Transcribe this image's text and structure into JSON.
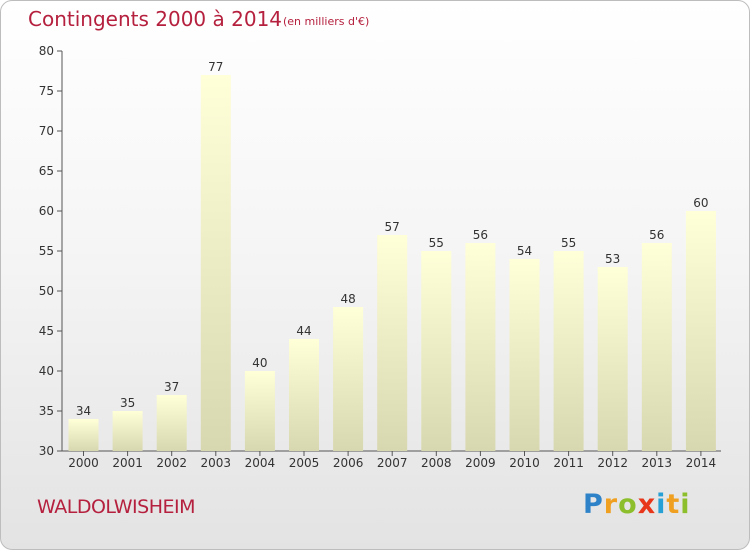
{
  "header": {
    "title": "Contingents 2000 à 2014",
    "subtitle": "(en milliers d'€)"
  },
  "footer": {
    "place": "WALDOLWISHEIM",
    "logo": "Proxiti"
  },
  "colors": {
    "title": "#b5203e",
    "bar_top": "#ffffd8",
    "bar_bottom": "#d8d8b0"
  },
  "chart_data": {
    "type": "bar",
    "categories": [
      "2000",
      "2001",
      "2002",
      "2003",
      "2004",
      "2005",
      "2006",
      "2007",
      "2008",
      "2009",
      "2010",
      "2011",
      "2012",
      "2013",
      "2014"
    ],
    "values": [
      34,
      35,
      37,
      77,
      40,
      44,
      48,
      57,
      55,
      56,
      54,
      55,
      53,
      56,
      60
    ],
    "title": "Contingents 2000 à 2014",
    "subtitle": "(en milliers d'€)",
    "xlabel": "",
    "ylabel": "",
    "ylim": [
      30,
      80
    ],
    "yticks": [
      30,
      35,
      40,
      45,
      50,
      55,
      60,
      65,
      70,
      75,
      80
    ],
    "grid": false,
    "data_labels": true
  }
}
